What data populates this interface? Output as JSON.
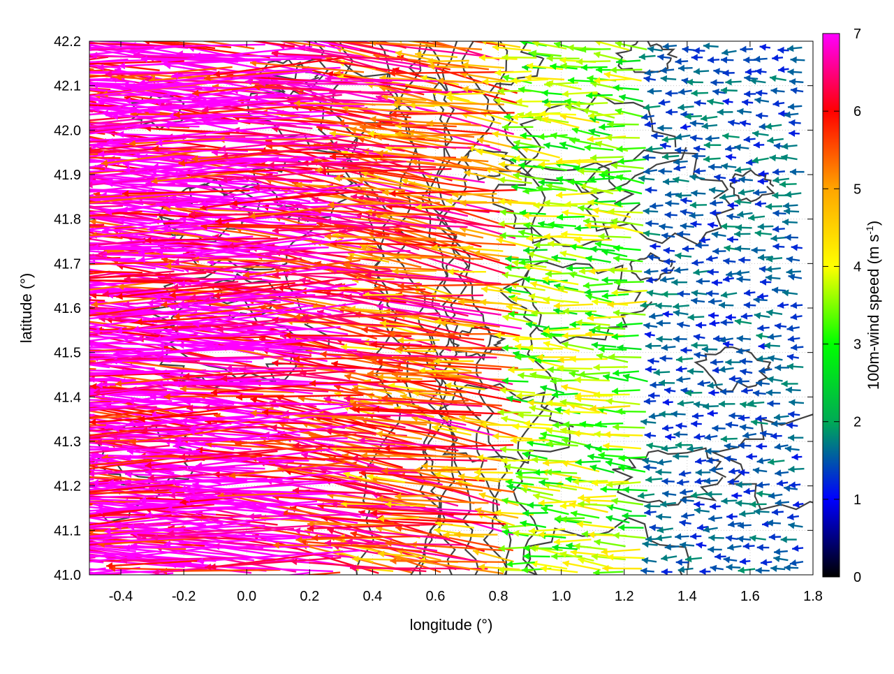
{
  "chart_data": {
    "type": "vector-field",
    "xlabel": "longitude (°)",
    "ylabel": "latitude (°)",
    "xlim": [
      -0.5,
      1.8
    ],
    "ylim": [
      41.0,
      42.2
    ],
    "xticks": [
      -0.4,
      -0.2,
      0.0,
      0.2,
      0.4,
      0.6,
      0.8,
      1.0,
      1.2,
      1.4,
      1.6,
      1.8
    ],
    "xtick_labels": [
      "-0.4",
      "-0.2",
      "0.0",
      "0.2",
      "0.4",
      "0.6",
      "0.8",
      "1.0",
      "1.2",
      "1.4",
      "1.6",
      "1.8"
    ],
    "yticks": [
      41.0,
      41.1,
      41.2,
      41.3,
      41.4,
      41.5,
      41.6,
      41.7,
      41.8,
      41.9,
      42.0,
      42.1,
      42.2
    ],
    "ytick_labels": [
      "41.0",
      "41.1",
      "41.2",
      "41.3",
      "41.4",
      "41.5",
      "41.6",
      "41.7",
      "41.8",
      "41.9",
      "42.0",
      "42.1",
      "42.2"
    ],
    "grid": true,
    "colorbar": {
      "label": "100m-wind speed (m s",
      "label_sup": "-1",
      "label_end": ")",
      "range": [
        0,
        7
      ],
      "ticks": [
        0,
        1,
        2,
        3,
        4,
        5,
        6,
        7
      ],
      "tick_labels": [
        "0",
        "1",
        "2",
        "3",
        "4",
        "5",
        "6",
        "7"
      ],
      "stops": [
        "#000000",
        "#0000ff",
        "#00aa55",
        "#00ff00",
        "#ffff00",
        "#ffa500",
        "#ff0000",
        "#ff00ff"
      ]
    },
    "vector_field": {
      "description_note": "regular grid of wind arrows, direction mostly toward west, speed decreasing eastward",
      "regions": [
        {
          "lon_range": [
            -0.5,
            0.4
          ],
          "lat_range": [
            41.0,
            42.2
          ],
          "speed_ms": 7.0,
          "dir_deg_from_east": 178
        },
        {
          "lon_range": [
            0.4,
            0.9
          ],
          "lat_range": [
            41.0,
            42.2
          ],
          "speed_ms": 5.5,
          "dir_deg_from_east": 172
        },
        {
          "lon_range": [
            0.9,
            1.3
          ],
          "lat_range": [
            41.0,
            42.2
          ],
          "speed_ms": 3.5,
          "dir_deg_from_east": 175
        },
        {
          "lon_range": [
            1.3,
            1.8
          ],
          "lat_range": [
            41.0,
            42.2
          ],
          "speed_ms": 1.5,
          "dir_deg_from_east": 180
        }
      ]
    },
    "contours": {
      "color": "#404040"
    }
  }
}
